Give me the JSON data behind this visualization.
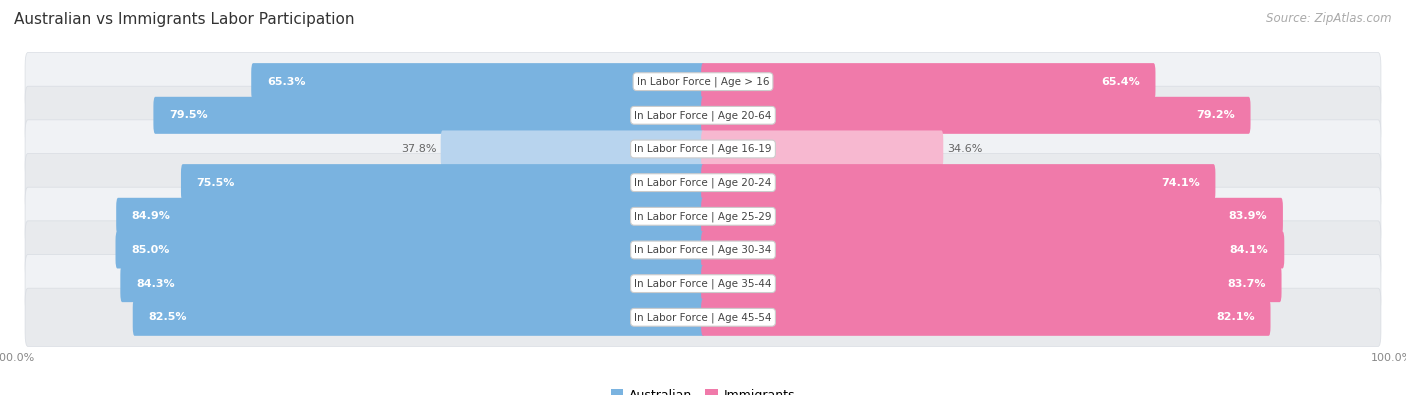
{
  "title": "Australian vs Immigrants Labor Participation",
  "source": "Source: ZipAtlas.com",
  "categories": [
    "In Labor Force | Age > 16",
    "In Labor Force | Age 20-64",
    "In Labor Force | Age 16-19",
    "In Labor Force | Age 20-24",
    "In Labor Force | Age 25-29",
    "In Labor Force | Age 30-34",
    "In Labor Force | Age 35-44",
    "In Labor Force | Age 45-54"
  ],
  "australian_values": [
    65.3,
    79.5,
    37.8,
    75.5,
    84.9,
    85.0,
    84.3,
    82.5
  ],
  "immigrant_values": [
    65.4,
    79.2,
    34.6,
    74.1,
    83.9,
    84.1,
    83.7,
    82.1
  ],
  "australian_color": "#7ab3e0",
  "australian_color_light": "#b8d4ee",
  "immigrant_color": "#f07aaa",
  "immigrant_color_light": "#f7b8d0",
  "row_bg_color_odd": "#f0f2f5",
  "row_bg_color_even": "#e8eaed",
  "row_bg_outline": "#d8dce2",
  "max_value": 100.0,
  "label_color_white": "#ffffff",
  "label_color_dark": "#666666",
  "background_color": "#ffffff",
  "title_fontsize": 11,
  "source_fontsize": 8.5,
  "bar_label_fontsize": 8,
  "category_fontsize": 7.5,
  "legend_fontsize": 9,
  "axis_label_fontsize": 8
}
